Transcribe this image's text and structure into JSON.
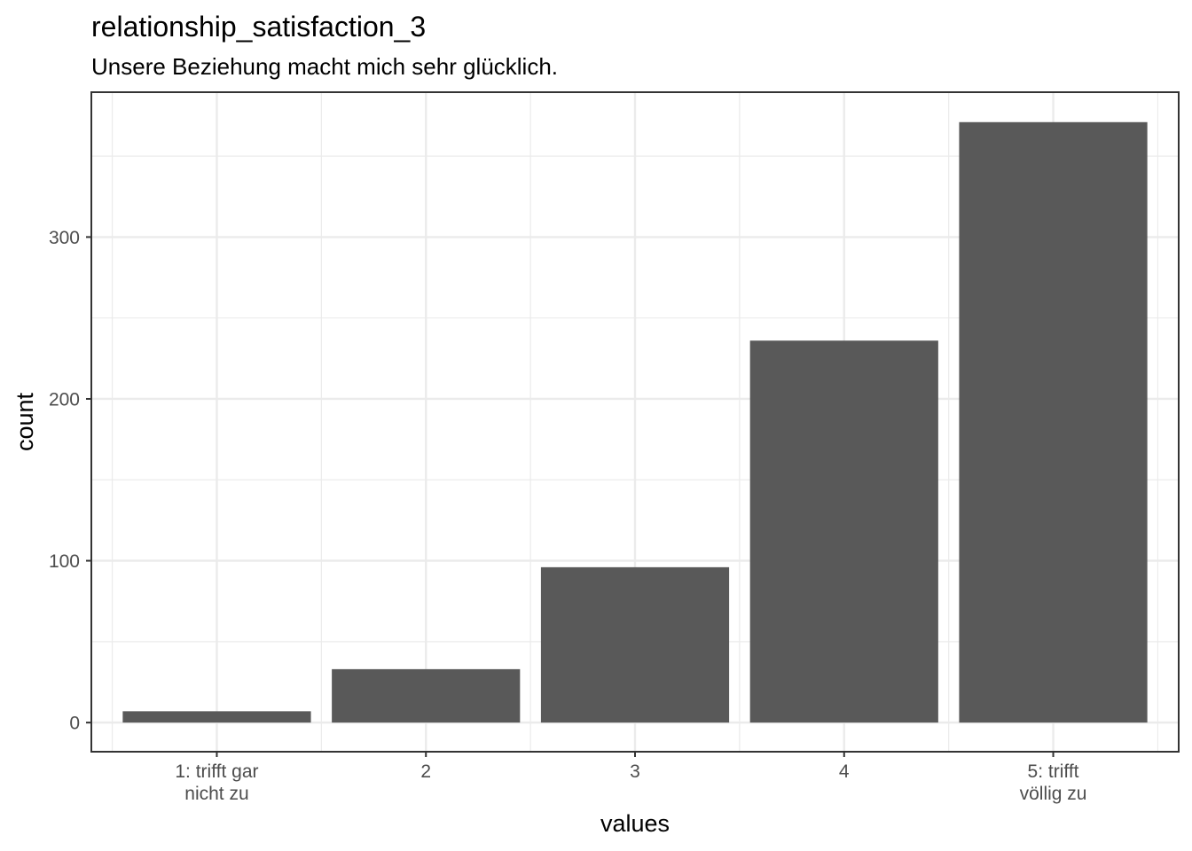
{
  "chart_data": {
    "type": "bar",
    "title": "relationship_satisfaction_3",
    "subtitle": "Unsere Beziehung macht mich sehr glücklich.",
    "xlabel": "values",
    "ylabel": "count",
    "categories": [
      "1: trifft gar\nnicht zu",
      "2",
      "3",
      "4",
      "5: trifft\nvöllig zu"
    ],
    "values": [
      7,
      33,
      96,
      236,
      371
    ],
    "ylim": [
      -18,
      389.5
    ],
    "yticks": [
      0,
      100,
      200,
      300
    ],
    "ytick_labels": [
      "0",
      "100",
      "200",
      "300"
    ],
    "grid": true,
    "colors": {
      "bar": "#595959",
      "grid": "#ebebeb",
      "panel_border": "#333333",
      "tick_text": "#4d4d4d"
    }
  }
}
